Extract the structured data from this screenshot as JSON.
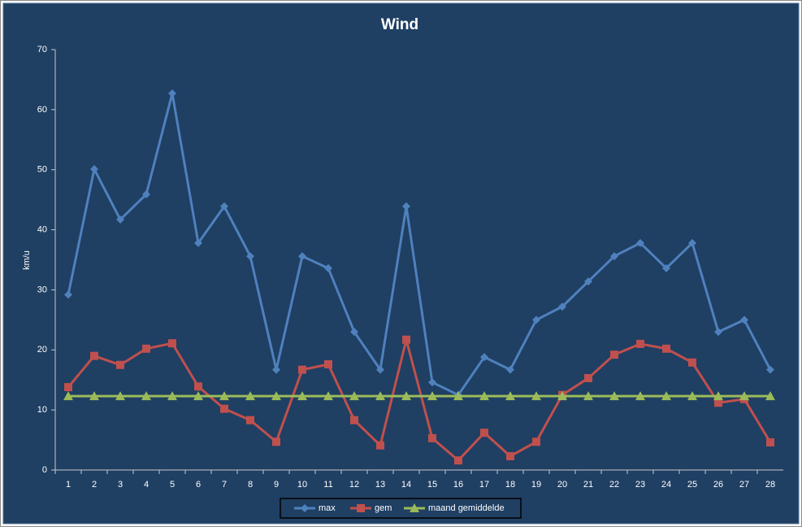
{
  "chart_data": {
    "type": "line",
    "title": "Wind",
    "y_label": "km/u",
    "categories": [
      "1",
      "2",
      "3",
      "4",
      "5",
      "6",
      "7",
      "8",
      "9",
      "10",
      "11",
      "12",
      "13",
      "14",
      "15",
      "16",
      "17",
      "18",
      "19",
      "20",
      "21",
      "22",
      "23",
      "24",
      "25",
      "26",
      "27",
      "28"
    ],
    "series": [
      {
        "name": "max",
        "color": "#4f81bd",
        "marker": "diamond",
        "values": [
          29.2,
          50.1,
          41.7,
          45.9,
          62.7,
          37.8,
          43.9,
          35.6,
          16.7,
          35.6,
          33.6,
          23.0,
          16.7,
          43.9,
          14.6,
          12.5,
          18.8,
          16.7,
          25.0,
          27.2,
          31.4,
          35.6,
          37.8,
          33.6,
          37.8,
          23.0,
          25.0,
          16.7
        ]
      },
      {
        "name": "gem",
        "color": "#c0504d",
        "marker": "square",
        "values": [
          13.8,
          19.0,
          17.5,
          20.2,
          21.1,
          13.9,
          10.2,
          8.3,
          4.7,
          16.7,
          17.6,
          8.3,
          4.1,
          21.7,
          5.3,
          1.6,
          6.2,
          2.3,
          4.7,
          12.5,
          15.3,
          19.2,
          21.0,
          20.2,
          17.9,
          11.2,
          11.8,
          4.6
        ]
      },
      {
        "name": "maand gemiddelde",
        "color": "#9bbb59",
        "marker": "triangle",
        "values": [
          12.3,
          12.3,
          12.3,
          12.3,
          12.3,
          12.3,
          12.3,
          12.3,
          12.3,
          12.3,
          12.3,
          12.3,
          12.3,
          12.3,
          12.3,
          12.3,
          12.3,
          12.3,
          12.3,
          12.3,
          12.3,
          12.3,
          12.3,
          12.3,
          12.3,
          12.3,
          12.3,
          12.3
        ]
      }
    ],
    "ylim": [
      0,
      70
    ],
    "yticks": [
      0,
      10,
      20,
      30,
      40,
      50,
      60,
      70
    ],
    "grid": false,
    "legend": "bottom"
  }
}
